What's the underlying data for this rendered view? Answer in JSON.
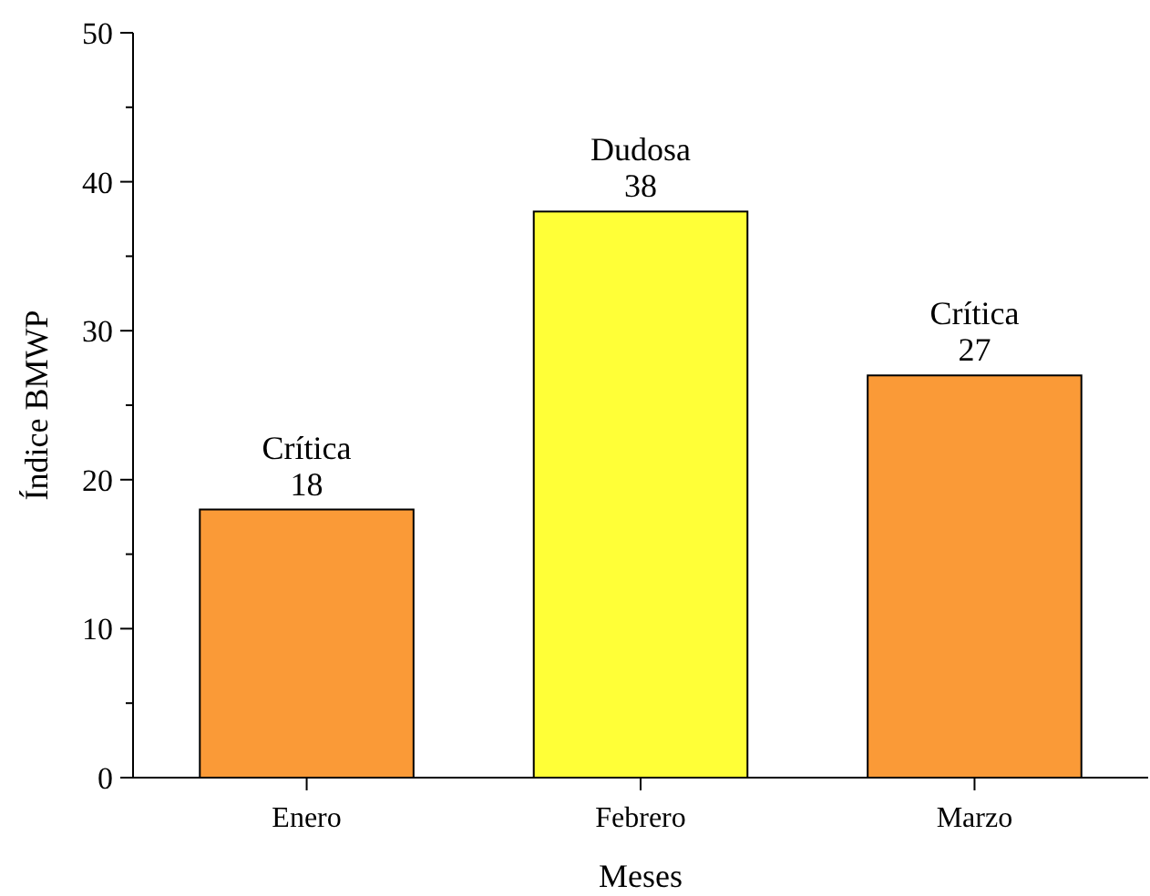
{
  "chart_data": {
    "type": "bar",
    "xlabel": "Meses",
    "ylabel": "Índice BMWP",
    "categories": [
      "Enero",
      "Febrero",
      "Marzo"
    ],
    "values": [
      18,
      38,
      27
    ],
    "colors": [
      "#fa9a37",
      "#ffff37",
      "#fa9a37"
    ],
    "ylim": [
      0,
      50
    ],
    "yticks": [
      0,
      {
        "value": 5,
        "label": null
      },
      10,
      {
        "value": 15,
        "label": null
      },
      20,
      {
        "value": 25,
        "label": null
      },
      30,
      {
        "value": 35,
        "label": null
      },
      40,
      {
        "value": 45,
        "label": null
      },
      50
    ],
    "data_labels": true,
    "annotations": [
      {
        "text": "Crítica",
        "x": "Enero",
        "y": 18
      },
      {
        "text": "Dudosa",
        "x": "Febrero",
        "y": 38
      },
      {
        "text": "Crítica",
        "x": "Marzo",
        "y": 27
      }
    ]
  }
}
